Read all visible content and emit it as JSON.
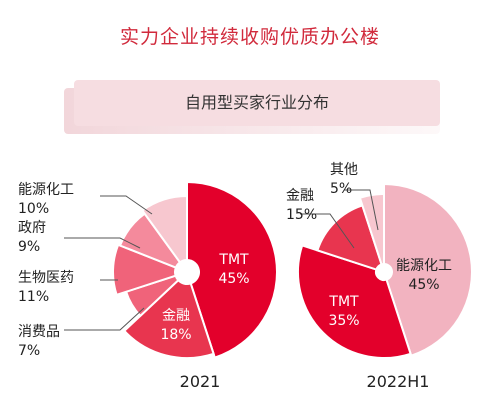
{
  "title": "实力企业持续收购优质办公楼",
  "subtitle": "自用型买家行业分布",
  "colors": {
    "title": "#d12a3c",
    "banner": "#f6dde1",
    "dark_red": "#e3002b",
    "mid_red": "#e8354f",
    "light_pink": "#f2b3c0",
    "pink": "#f0637a",
    "pale_pink": "#f7c7cf"
  },
  "chart_data": [
    {
      "type": "pie",
      "title": "2021",
      "slices": [
        {
          "name": "TMT",
          "value": 45,
          "label": "45%"
        },
        {
          "name": "金融",
          "value": 18,
          "label": "18%"
        },
        {
          "name": "消费品",
          "value": 7,
          "label": "7%"
        },
        {
          "name": "生物医药",
          "value": 11,
          "label": "11%"
        },
        {
          "name": "政府",
          "value": 9,
          "label": "9%"
        },
        {
          "name": "能源化工",
          "value": 10,
          "label": "10%"
        }
      ]
    },
    {
      "type": "pie",
      "title": "2022H1",
      "slices": [
        {
          "name": "能源化工",
          "value": 45,
          "label": "45%"
        },
        {
          "name": "TMT",
          "value": 35,
          "label": "35%"
        },
        {
          "name": "金融",
          "value": 15,
          "label": "15%"
        },
        {
          "name": "其他",
          "value": 5,
          "label": "5%"
        }
      ]
    }
  ]
}
